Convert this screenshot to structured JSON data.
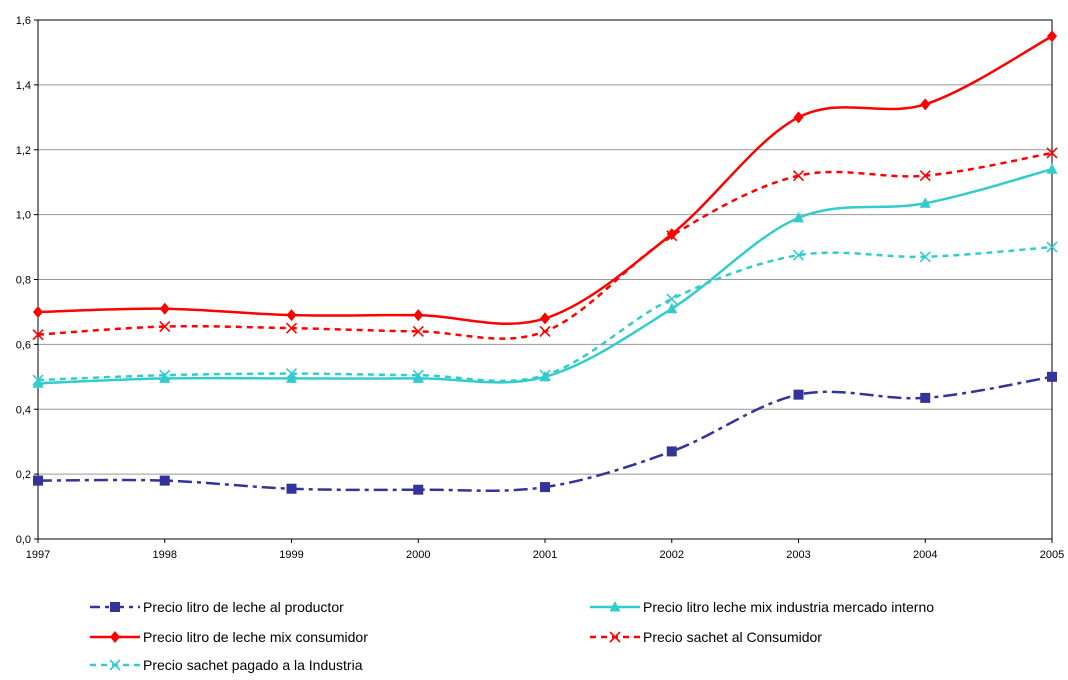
{
  "chart_data": {
    "type": "line",
    "title": "",
    "xlabel": "",
    "ylabel": "",
    "categories": [
      "1997",
      "1998",
      "1999",
      "2000",
      "2001",
      "2002",
      "2003",
      "2004",
      "2005"
    ],
    "ylim": [
      0,
      1.6
    ],
    "yticks": [
      "0,0",
      "0,2",
      "0,4",
      "0,6",
      "0,8",
      "1,0",
      "1,2",
      "1,4",
      "1,6"
    ],
    "grid": true,
    "legend_position": "bottom",
    "series": [
      {
        "name": "Precio litro de leche al productor",
        "values": [
          0.18,
          0.18,
          0.155,
          0.152,
          0.16,
          0.27,
          0.445,
          0.435,
          0.5
        ],
        "color": "#333399",
        "dash": "dashdot",
        "marker": "square"
      },
      {
        "name": "Precio litro leche mix industria mercado interno",
        "values": [
          0.48,
          0.495,
          0.495,
          0.495,
          0.5,
          0.71,
          0.99,
          1.035,
          1.14
        ],
        "color": "#33CCCC",
        "dash": "solid",
        "marker": "triangle"
      },
      {
        "name": "Precio litro de leche mix consumidor",
        "values": [
          0.7,
          0.71,
          0.69,
          0.69,
          0.68,
          0.94,
          1.3,
          1.34,
          1.55
        ],
        "color": "#FF0000",
        "dash": "solid",
        "marker": "diamond"
      },
      {
        "name": "Precio sachet al Consumidor",
        "values": [
          0.63,
          0.655,
          0.65,
          0.64,
          0.64,
          0.935,
          1.12,
          1.12,
          1.19
        ],
        "color": "#FF0000",
        "dash": "dashed",
        "marker": "x"
      },
      {
        "name": "Precio sachet pagado a la Industria",
        "values": [
          0.49,
          0.505,
          0.51,
          0.505,
          0.505,
          0.74,
          0.875,
          0.87,
          0.9
        ],
        "color": "#33CCCC",
        "dash": "dashed",
        "marker": "x"
      }
    ]
  }
}
